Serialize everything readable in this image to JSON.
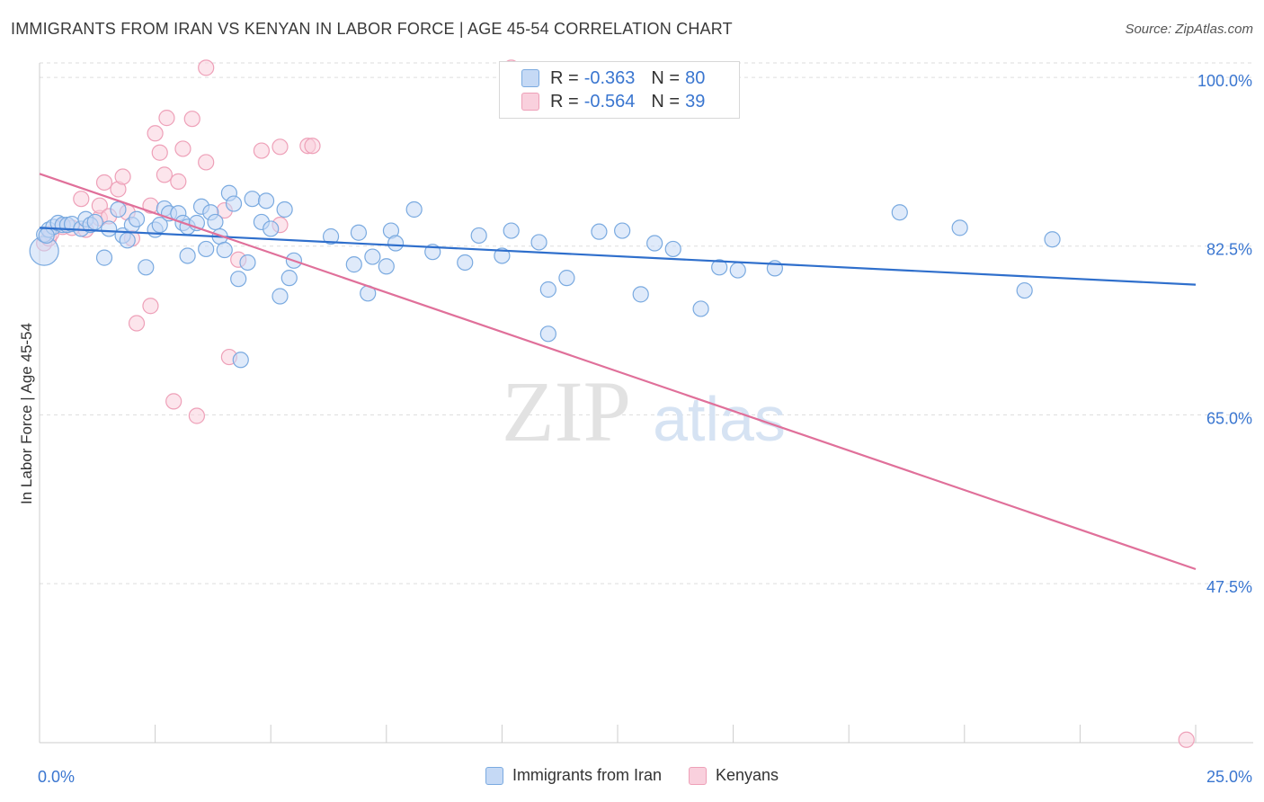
{
  "title": "IMMIGRANTS FROM IRAN VS KENYAN IN LABOR FORCE | AGE 45-54 CORRELATION CHART",
  "source": "Source: ZipAtlas.com",
  "watermark": {
    "zip": "ZIP",
    "atlas": "atlas"
  },
  "legend": {
    "iran": {
      "r_label": "R =",
      "r_value": "-0.363",
      "n_label": "N =",
      "n_value": "80"
    },
    "kenya": {
      "r_label": "R =",
      "r_value": "-0.564",
      "n_label": "N =",
      "n_value": "39"
    }
  },
  "bottom_legend": {
    "iran": "Immigrants from Iran",
    "kenya": "Kenyans"
  },
  "colors": {
    "iran_fill": "#c5d9f5",
    "iran_stroke": "#7aaae0",
    "iran_line": "#2f6fcc",
    "kenya_fill": "#f9d0dd",
    "kenya_stroke": "#eea0b8",
    "kenya_line": "#e0709a",
    "tick_label": "#3a76d0",
    "grid": "#dddddd"
  },
  "chart_data": {
    "type": "scatter",
    "title": "IMMIGRANTS FROM IRAN VS KENYAN IN LABOR FORCE | AGE 45-54 CORRELATION CHART",
    "xlabel": "",
    "ylabel": "In Labor Force | Age 45-54",
    "xlim": [
      0,
      25
    ],
    "ylim": [
      31,
      101.5
    ],
    "x_tick_labels": [
      "0.0%",
      "25.0%"
    ],
    "y_ticks": [
      47.5,
      65.0,
      82.5,
      100.0
    ],
    "y_tick_labels": [
      "47.5%",
      "65.0%",
      "82.5%",
      "100.0%"
    ],
    "grid": "horizontal dashed",
    "series": [
      {
        "name": "Immigrants from Iran",
        "trend": {
          "x": [
            0,
            25
          ],
          "y": [
            84.4,
            78.5
          ]
        },
        "points": [
          [
            0.1,
            82.0
          ],
          [
            0.1,
            83.7
          ],
          [
            0.2,
            84.2
          ],
          [
            0.3,
            84.5
          ],
          [
            0.4,
            84.9
          ],
          [
            0.5,
            84.7
          ],
          [
            0.6,
            84.7
          ],
          [
            0.7,
            84.8
          ],
          [
            0.9,
            84.3
          ],
          [
            1.0,
            85.3
          ],
          [
            1.1,
            84.7
          ],
          [
            1.2,
            85.0
          ],
          [
            1.4,
            81.3
          ],
          [
            1.5,
            84.3
          ],
          [
            1.7,
            86.3
          ],
          [
            1.8,
            83.6
          ],
          [
            1.9,
            83.1
          ],
          [
            2.0,
            84.7
          ],
          [
            2.1,
            85.3
          ],
          [
            2.3,
            80.3
          ],
          [
            2.5,
            84.2
          ],
          [
            2.6,
            84.7
          ],
          [
            2.7,
            86.4
          ],
          [
            2.8,
            85.9
          ],
          [
            3.0,
            85.9
          ],
          [
            3.1,
            84.9
          ],
          [
            3.2,
            84.5
          ],
          [
            3.2,
            81.5
          ],
          [
            3.4,
            84.9
          ],
          [
            3.5,
            86.6
          ],
          [
            3.6,
            82.2
          ],
          [
            3.7,
            86.0
          ],
          [
            3.8,
            85.0
          ],
          [
            3.9,
            83.5
          ],
          [
            4.0,
            82.1
          ],
          [
            4.1,
            88.0
          ],
          [
            4.2,
            86.9
          ],
          [
            4.3,
            79.1
          ],
          [
            4.35,
            70.7
          ],
          [
            4.5,
            80.8
          ],
          [
            4.6,
            87.4
          ],
          [
            4.8,
            85.0
          ],
          [
            4.9,
            87.2
          ],
          [
            5.0,
            84.3
          ],
          [
            5.2,
            77.3
          ],
          [
            5.3,
            86.3
          ],
          [
            5.4,
            79.2
          ],
          [
            5.5,
            81.0
          ],
          [
            6.3,
            83.5
          ],
          [
            6.8,
            80.6
          ],
          [
            6.9,
            83.9
          ],
          [
            7.1,
            77.6
          ],
          [
            7.2,
            81.4
          ],
          [
            7.5,
            80.4
          ],
          [
            7.6,
            84.1
          ],
          [
            7.7,
            82.8
          ],
          [
            8.1,
            86.3
          ],
          [
            8.5,
            81.9
          ],
          [
            9.2,
            80.8
          ],
          [
            9.5,
            83.6
          ],
          [
            10.0,
            81.5
          ],
          [
            10.2,
            84.1
          ],
          [
            10.8,
            82.9
          ],
          [
            11.0,
            78.0
          ],
          [
            11.0,
            73.4
          ],
          [
            11.4,
            79.2
          ],
          [
            12.1,
            84.0
          ],
          [
            12.6,
            84.1
          ],
          [
            13.0,
            77.5
          ],
          [
            13.3,
            82.8
          ],
          [
            13.7,
            82.2
          ],
          [
            14.3,
            76.0
          ],
          [
            14.7,
            80.3
          ],
          [
            15.1,
            80.0
          ],
          [
            15.9,
            80.2
          ],
          [
            18.6,
            86.0
          ],
          [
            19.9,
            84.4
          ],
          [
            21.3,
            77.9
          ],
          [
            21.9,
            83.2
          ],
          [
            0.15,
            83.6
          ]
        ]
      },
      {
        "name": "Kenyans",
        "trend": {
          "x": [
            0,
            25
          ],
          "y": [
            90.0,
            49.0
          ]
        },
        "points": [
          [
            0.1,
            82.8
          ],
          [
            0.2,
            83.3
          ],
          [
            0.5,
            84.5
          ],
          [
            0.7,
            84.4
          ],
          [
            0.9,
            87.4
          ],
          [
            1.0,
            84.2
          ],
          [
            1.3,
            85.4
          ],
          [
            1.3,
            86.7
          ],
          [
            1.4,
            89.1
          ],
          [
            1.5,
            85.6
          ],
          [
            1.7,
            88.4
          ],
          [
            1.8,
            89.7
          ],
          [
            1.9,
            86.0
          ],
          [
            2.0,
            83.3
          ],
          [
            2.1,
            74.5
          ],
          [
            2.4,
            86.7
          ],
          [
            2.4,
            76.3
          ],
          [
            2.5,
            94.2
          ],
          [
            2.6,
            92.2
          ],
          [
            2.7,
            89.9
          ],
          [
            2.75,
            95.8
          ],
          [
            2.9,
            66.4
          ],
          [
            3.0,
            89.2
          ],
          [
            3.1,
            92.6
          ],
          [
            3.3,
            95.7
          ],
          [
            3.4,
            64.9
          ],
          [
            3.6,
            91.2
          ],
          [
            3.6,
            101.0
          ],
          [
            4.0,
            86.2
          ],
          [
            4.1,
            71.0
          ],
          [
            4.3,
            81.1
          ],
          [
            4.8,
            92.4
          ],
          [
            5.2,
            84.7
          ],
          [
            5.2,
            92.8
          ],
          [
            5.8,
            92.9
          ],
          [
            5.9,
            92.9
          ],
          [
            10.2,
            101.0
          ],
          [
            24.8,
            31.3
          ],
          [
            0.25,
            83.8
          ]
        ]
      }
    ]
  }
}
